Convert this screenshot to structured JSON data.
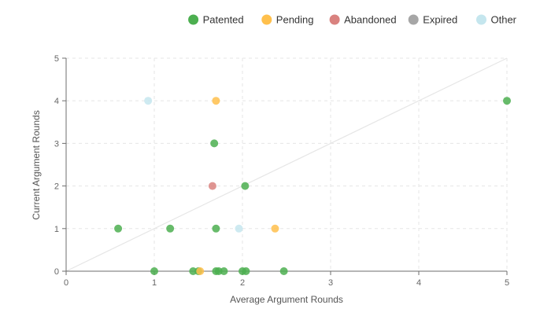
{
  "chart_data": {
    "type": "scatter",
    "title": "",
    "xlabel": "Average Argument Rounds",
    "ylabel": "Current Argument Rounds",
    "xlim": [
      0,
      5
    ],
    "ylim": [
      0,
      5
    ],
    "xticks": [
      "0",
      "1",
      "2",
      "3",
      "4",
      "5"
    ],
    "yticks": [
      "0",
      "1",
      "2",
      "3",
      "4",
      "5"
    ],
    "grid": true,
    "legend_position": "top-right",
    "reference_line": {
      "from": [
        0,
        0
      ],
      "to": [
        5,
        5
      ],
      "color": "#e6e6e6"
    },
    "series": [
      {
        "name": "Patented",
        "color": "#4caf50",
        "points": [
          {
            "x": 5.0,
            "y": 4
          },
          {
            "x": 1.68,
            "y": 3
          },
          {
            "x": 2.03,
            "y": 2
          },
          {
            "x": 0.59,
            "y": 1
          },
          {
            "x": 1.18,
            "y": 1
          },
          {
            "x": 1.7,
            "y": 1
          },
          {
            "x": 1.0,
            "y": 0
          },
          {
            "x": 1.44,
            "y": 0
          },
          {
            "x": 1.5,
            "y": 0
          },
          {
            "x": 1.7,
            "y": 0
          },
          {
            "x": 1.73,
            "y": 0
          },
          {
            "x": 1.79,
            "y": 0
          },
          {
            "x": 2.0,
            "y": 0
          },
          {
            "x": 2.04,
            "y": 0
          },
          {
            "x": 2.47,
            "y": 0
          }
        ]
      },
      {
        "name": "Pending",
        "color": "#ffc04c",
        "points": [
          {
            "x": 1.7,
            "y": 4
          },
          {
            "x": 2.37,
            "y": 1
          },
          {
            "x": 1.52,
            "y": 0
          }
        ]
      },
      {
        "name": "Abandoned",
        "color": "#d9827f",
        "points": [
          {
            "x": 1.66,
            "y": 2
          }
        ]
      },
      {
        "name": "Expired",
        "color": "#a6a6a6",
        "points": []
      },
      {
        "name": "Other",
        "color": "#c5e6ee",
        "points": [
          {
            "x": 0.93,
            "y": 4
          },
          {
            "x": 1.96,
            "y": 1
          }
        ]
      }
    ]
  }
}
